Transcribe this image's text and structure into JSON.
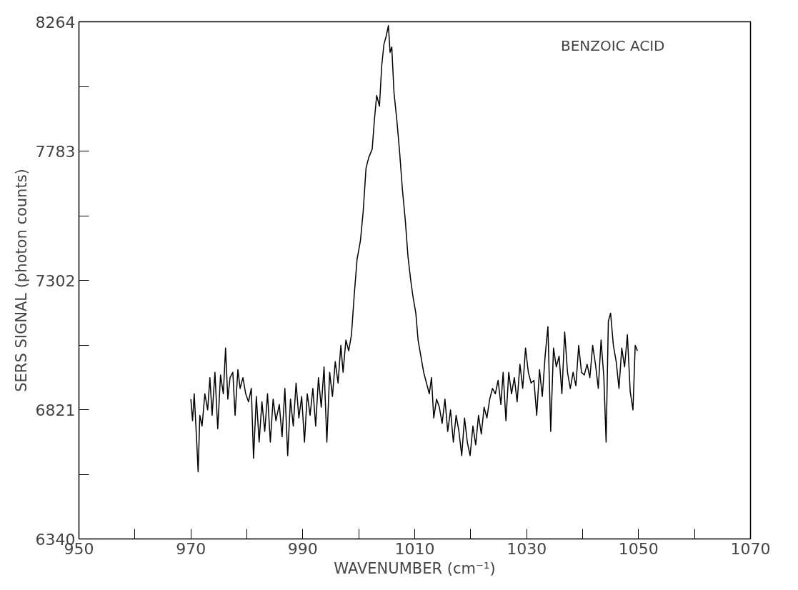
{
  "chart_data": {
    "type": "line",
    "xlabel": "WAVENUMBER (cm⁻¹)",
    "ylabel": "SERS SIGNAL (photon counts)",
    "annotations": [
      "BENZOIC ACID"
    ],
    "xlim": [
      950,
      1070
    ],
    "ylim": [
      6340,
      8264
    ],
    "xticks": [
      950,
      {
        "value": 960,
        "label": null
      },
      970,
      {
        "value": 980,
        "label": null
      },
      990,
      {
        "value": 1000,
        "label": null
      },
      1010,
      {
        "value": 1020,
        "label": null
      },
      1030,
      {
        "value": 1040,
        "label": null
      },
      1050,
      {
        "value": 1060,
        "label": null
      },
      1070
    ],
    "yticks": [
      6340,
      {
        "value": 6580.5,
        "label": null
      },
      6821,
      {
        "value": 7061.5,
        "label": null
      },
      7302,
      {
        "value": 7542.5,
        "label": null
      },
      7783,
      {
        "value": 8023.5,
        "label": null
      },
      8264
    ],
    "grid": false,
    "marker": "none",
    "line_style": "solid",
    "series": [
      {
        "color": "#000000",
        "x": [
          970.0,
          970.3,
          970.6,
          971.0,
          971.3,
          971.6,
          972.0,
          972.5,
          973.0,
          973.4,
          973.8,
          974.3,
          974.8,
          975.3,
          975.8,
          976.2,
          976.6,
          977.0,
          977.5,
          977.9,
          978.4,
          978.8,
          979.3,
          979.8,
          980.3,
          980.8,
          981.2,
          981.7,
          982.2,
          982.7,
          983.2,
          983.7,
          984.2,
          984.7,
          985.2,
          985.8,
          986.3,
          986.8,
          987.3,
          987.8,
          988.3,
          988.8,
          989.3,
          989.8,
          990.3,
          990.8,
          991.3,
          991.8,
          992.3,
          992.8,
          993.3,
          993.8,
          994.3,
          994.8,
          995.3,
          995.8,
          996.3,
          996.8,
          997.2,
          997.7,
          998.2,
          998.7,
          999.2,
          999.7,
          1000.3,
          1000.8,
          1001.3,
          1001.8,
          1002.4,
          1002.8,
          1003.2,
          1003.7,
          1004.1,
          1004.5,
          1004.9,
          1005.3,
          1005.6,
          1005.9,
          1006.3,
          1006.8,
          1007.3,
          1007.8,
          1008.3,
          1008.8,
          1009.3,
          1009.7,
          1010.2,
          1010.6,
          1011.1,
          1011.6,
          1012.1,
          1012.6,
          1013.0,
          1013.4,
          1013.9,
          1014.4,
          1014.9,
          1015.4,
          1015.9,
          1016.4,
          1016.9,
          1017.4,
          1017.9,
          1018.4,
          1018.9,
          1019.4,
          1019.9,
          1020.4,
          1020.9,
          1021.4,
          1021.9,
          1022.4,
          1022.9,
          1023.4,
          1023.9,
          1024.4,
          1024.9,
          1025.4,
          1025.8,
          1026.3,
          1026.8,
          1027.3,
          1027.8,
          1028.3,
          1028.8,
          1029.3,
          1029.8,
          1030.3,
          1030.8,
          1031.3,
          1031.8,
          1032.3,
          1032.8,
          1033.3,
          1033.8,
          1034.3,
          1034.8,
          1035.3,
          1035.8,
          1036.3,
          1036.8,
          1037.3,
          1037.8,
          1038.3,
          1038.8,
          1039.3,
          1039.8,
          1040.3,
          1040.8,
          1041.3,
          1041.8,
          1042.3,
          1042.8,
          1043.3,
          1043.8,
          1044.2,
          1044.6,
          1045.0,
          1045.5,
          1046.0,
          1046.5,
          1047.0,
          1047.5,
          1048.0,
          1048.5,
          1049.0,
          1049.4,
          1049.8
        ],
        "values": [
          6860,
          6780,
          6880,
          6720,
          6590,
          6800,
          6760,
          6880,
          6820,
          6940,
          6800,
          6960,
          6750,
          6950,
          6880,
          7050,
          6860,
          6940,
          6960,
          6800,
          6970,
          6900,
          6940,
          6880,
          6850,
          6900,
          6640,
          6870,
          6700,
          6850,
          6740,
          6880,
          6700,
          6860,
          6780,
          6840,
          6720,
          6900,
          6650,
          6860,
          6760,
          6920,
          6790,
          6870,
          6700,
          6880,
          6800,
          6900,
          6760,
          6940,
          6830,
          6980,
          6700,
          6960,
          6870,
          7000,
          6920,
          7060,
          6960,
          7080,
          7040,
          7100,
          7250,
          7380,
          7450,
          7560,
          7720,
          7760,
          7790,
          7900,
          7990,
          7950,
          8100,
          8180,
          8210,
          8250,
          8150,
          8170,
          8000,
          7900,
          7780,
          7640,
          7530,
          7390,
          7300,
          7240,
          7180,
          7080,
          7020,
          6960,
          6920,
          6880,
          6940,
          6790,
          6860,
          6830,
          6770,
          6860,
          6740,
          6820,
          6700,
          6800,
          6740,
          6650,
          6790,
          6700,
          6650,
          6760,
          6690,
          6800,
          6730,
          6830,
          6790,
          6860,
          6900,
          6880,
          6930,
          6840,
          6960,
          6780,
          6960,
          6880,
          6940,
          6850,
          6990,
          6900,
          7050,
          6960,
          6920,
          6930,
          6800,
          6970,
          6870,
          7020,
          7130,
          6740,
          7050,
          6980,
          7020,
          6880,
          7110,
          6960,
          6900,
          6960,
          6910,
          7060,
          6960,
          6950,
          6990,
          6940,
          7060,
          6990,
          6900,
          7080,
          6940,
          6700,
          7150,
          7180,
          7060,
          7000,
          6900,
          7050,
          6980,
          7100,
          6890,
          6820,
          7060,
          7040
        ]
      }
    ]
  }
}
